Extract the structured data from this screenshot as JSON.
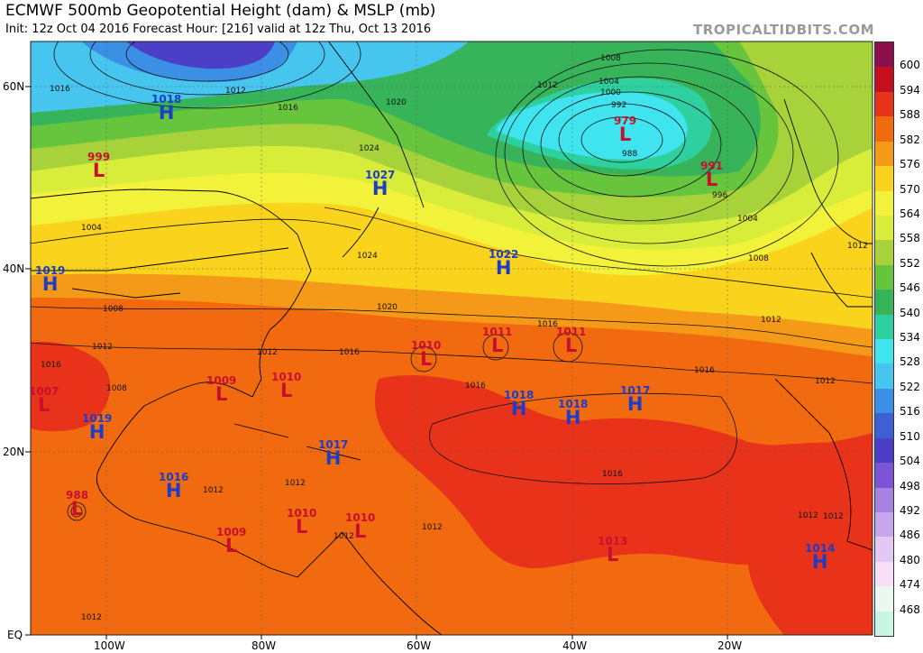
{
  "header": {
    "title": "ECMWF 500mb Geopotential Height (dam) & MSLP (mb)",
    "subtitle": "Init: 12z Oct 04 2016   Forecast Hour: [216]   valid at 12z Thu, Oct 13 2016",
    "credit": "TROPICALTIDBITS.COM"
  },
  "colorbar": {
    "labels": [
      "600",
      "594",
      "588",
      "582",
      "576",
      "570",
      "564",
      "558",
      "552",
      "546",
      "540",
      "534",
      "528",
      "522",
      "516",
      "510",
      "504",
      "498",
      "492",
      "486",
      "480",
      "474",
      "468"
    ],
    "colors": [
      "#8a0f4a",
      "#c40f1e",
      "#e8321a",
      "#f26a10",
      "#f59a18",
      "#fad41c",
      "#f2f23a",
      "#d8ec3a",
      "#a7d23a",
      "#67c43d",
      "#37b45a",
      "#2fd0a0",
      "#3fe4ee",
      "#46c6ee",
      "#3b8fe4",
      "#3e60d4",
      "#4b3fc8",
      "#7b55d6",
      "#a683e2",
      "#c6a6ec",
      "#e2c8f4",
      "#f7dff8",
      "#e9f8f0",
      "#c9f5e4"
    ]
  },
  "axes": {
    "lat_labels": [
      "60N",
      "40N",
      "20N",
      "EQ"
    ],
    "lon_labels": [
      "100W",
      "80W",
      "60W",
      "40W",
      "20W"
    ]
  },
  "pressure_systems": [
    {
      "type": "H",
      "value": "1018"
    },
    {
      "type": "L",
      "value": "999"
    },
    {
      "type": "H",
      "value": "1027"
    },
    {
      "type": "L",
      "value": "979"
    },
    {
      "type": "L",
      "value": "991"
    },
    {
      "type": "H",
      "value": "1019"
    },
    {
      "type": "H",
      "value": "1022"
    },
    {
      "type": "L",
      "value": "1010"
    },
    {
      "type": "L",
      "value": "1011"
    },
    {
      "type": "L",
      "value": "1011"
    },
    {
      "type": "L",
      "value": "1007"
    },
    {
      "type": "L",
      "value": "1009"
    },
    {
      "type": "L",
      "value": "1010"
    },
    {
      "type": "H",
      "value": "1018"
    },
    {
      "type": "H",
      "value": "1018"
    },
    {
      "type": "H",
      "value": "1017"
    },
    {
      "type": "H",
      "value": "1019"
    },
    {
      "type": "H",
      "value": "1017"
    },
    {
      "type": "H",
      "value": "1016"
    },
    {
      "type": "L",
      "value": "988"
    },
    {
      "type": "L",
      "value": "1009"
    },
    {
      "type": "L",
      "value": "1010"
    },
    {
      "type": "L",
      "value": "1010"
    },
    {
      "type": "L",
      "value": "1013"
    },
    {
      "type": "H",
      "value": "1014"
    }
  ],
  "isobar_labels": [
    "1016",
    "1012",
    "1016",
    "1020",
    "1024",
    "1012",
    "1008",
    "1004",
    "1000",
    "992",
    "988",
    "996",
    "1004",
    "1008",
    "1012",
    "1024",
    "1020",
    "1016",
    "1008",
    "1004",
    "1016",
    "1016",
    "1012",
    "1016",
    "1012",
    "1016",
    "1012",
    "1012",
    "1012",
    "1012",
    "1012",
    "1012",
    "1008",
    "1012",
    "1016",
    "1012",
    "1012"
  ]
}
